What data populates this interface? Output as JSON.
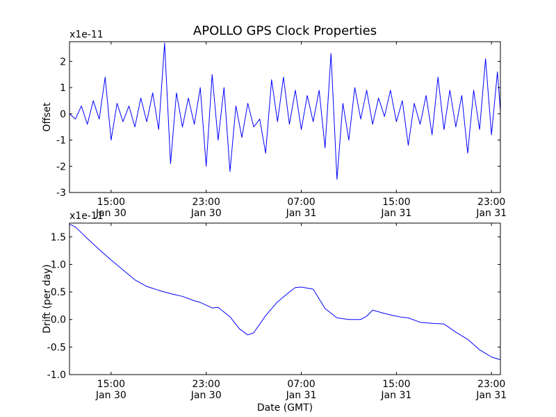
{
  "title": "APOLLO GPS Clock Properties",
  "chart_data": [
    {
      "type": "line",
      "ylabel": "Offset",
      "exponent": "x1e-11",
      "xlabel": "",
      "ylim": [
        -3,
        2.75
      ],
      "yticks": [
        -3,
        -2,
        -1,
        0,
        1,
        2
      ],
      "ytick_labels": [
        "-3",
        "-2",
        "-1",
        "0",
        "1",
        "2"
      ],
      "xlim_hours": [
        11.5,
        47.75
      ],
      "xticks_hours": [
        15,
        23,
        31,
        39,
        47
      ],
      "xtick_labels": [
        [
          "15:00",
          "Jan 30"
        ],
        [
          "23:00",
          "Jan 30"
        ],
        [
          "07:00",
          "Jan 31"
        ],
        [
          "15:00",
          "Jan 31"
        ],
        [
          "23:00",
          "Jan 31"
        ]
      ],
      "series": [
        {
          "name": "Offset",
          "color": "#0000ff",
          "x_hours": [
            11.5,
            12.0,
            12.5,
            13.0,
            13.5,
            14.0,
            14.5,
            15.0,
            15.5,
            16.0,
            16.5,
            17.0,
            17.5,
            18.0,
            18.5,
            19.0,
            19.5,
            20.0,
            20.5,
            21.0,
            21.5,
            22.0,
            22.5,
            23.0,
            23.5,
            24.0,
            24.5,
            25.0,
            25.5,
            26.0,
            26.5,
            27.0,
            27.5,
            28.0,
            28.5,
            29.0,
            29.5,
            30.0,
            30.5,
            31.0,
            31.5,
            32.0,
            32.5,
            33.0,
            33.5,
            34.0,
            34.5,
            35.0,
            35.5,
            36.0,
            36.5,
            37.0,
            37.5,
            38.0,
            38.5,
            39.0,
            39.5,
            40.0,
            40.5,
            41.0,
            41.5,
            42.0,
            42.5,
            43.0,
            43.5,
            44.0,
            44.5,
            45.0,
            45.5,
            46.0,
            46.5,
            47.0,
            47.5,
            47.75
          ],
          "values": [
            0.0,
            -0.2,
            0.3,
            -0.4,
            0.5,
            -0.2,
            1.4,
            -1.0,
            0.4,
            -0.3,
            0.3,
            -0.5,
            0.6,
            -0.3,
            0.8,
            -0.6,
            2.7,
            -1.9,
            0.8,
            -0.5,
            0.6,
            -0.4,
            1.0,
            -2.0,
            1.5,
            -1.0,
            1.0,
            -2.2,
            0.3,
            -0.9,
            0.4,
            -0.5,
            -0.2,
            -1.5,
            1.3,
            -0.3,
            1.4,
            -0.4,
            0.9,
            -0.6,
            0.7,
            -0.3,
            0.9,
            -1.3,
            2.3,
            -2.5,
            0.4,
            -1.0,
            1.0,
            -0.2,
            0.9,
            -0.4,
            0.6,
            -0.1,
            0.9,
            -0.3,
            0.5,
            -1.2,
            0.4,
            -0.4,
            0.7,
            -0.8,
            1.4,
            -0.6,
            0.9,
            -0.5,
            0.7,
            -1.5,
            0.9,
            -0.6,
            2.1,
            -0.8,
            1.6,
            0.1
          ]
        }
      ]
    },
    {
      "type": "line",
      "ylabel": "Drift (per day)",
      "exponent": "x1e-11",
      "xlabel": "Date (GMT)",
      "ylim": [
        -1.0,
        1.75
      ],
      "yticks": [
        -1.0,
        -0.5,
        0.0,
        0.5,
        1.0,
        1.5
      ],
      "ytick_labels": [
        "-1.0",
        "-0.5",
        "0.0",
        "0.5",
        "1.0",
        "1.5"
      ],
      "xlim_hours": [
        11.5,
        47.75
      ],
      "xticks_hours": [
        15,
        23,
        31,
        39,
        47
      ],
      "xtick_labels": [
        [
          "15:00",
          "Jan 30"
        ],
        [
          "23:00",
          "Jan 30"
        ],
        [
          "07:00",
          "Jan 31"
        ],
        [
          "15:00",
          "Jan 31"
        ],
        [
          "23:00",
          "Jan 31"
        ]
      ],
      "series": [
        {
          "name": "Drift",
          "color": "#0000ff",
          "x_hours": [
            11.5,
            12.0,
            13.0,
            14.0,
            15.0,
            16.0,
            17.0,
            18.0,
            19.0,
            20.0,
            21.0,
            22.0,
            22.5,
            23.5,
            24.0,
            25.0,
            25.8,
            26.5,
            27.0,
            28.0,
            29.0,
            30.0,
            30.5,
            31.0,
            32.0,
            33.0,
            34.0,
            35.0,
            36.0,
            36.5,
            37.0,
            38.0,
            39.0,
            39.5,
            40.0,
            41.0,
            42.0,
            43.0,
            44.0,
            45.0,
            46.0,
            47.0,
            47.75
          ],
          "values": [
            1.73,
            1.68,
            1.47,
            1.27,
            1.08,
            0.9,
            0.72,
            0.6,
            0.53,
            0.47,
            0.42,
            0.34,
            0.31,
            0.21,
            0.22,
            0.05,
            -0.17,
            -0.28,
            -0.24,
            0.07,
            0.32,
            0.5,
            0.58,
            0.59,
            0.55,
            0.2,
            0.03,
            0.0,
            0.0,
            0.06,
            0.17,
            0.11,
            0.06,
            0.04,
            0.03,
            -0.05,
            -0.07,
            -0.08,
            -0.23,
            -0.36,
            -0.55,
            -0.68,
            -0.73
          ]
        }
      ]
    }
  ]
}
